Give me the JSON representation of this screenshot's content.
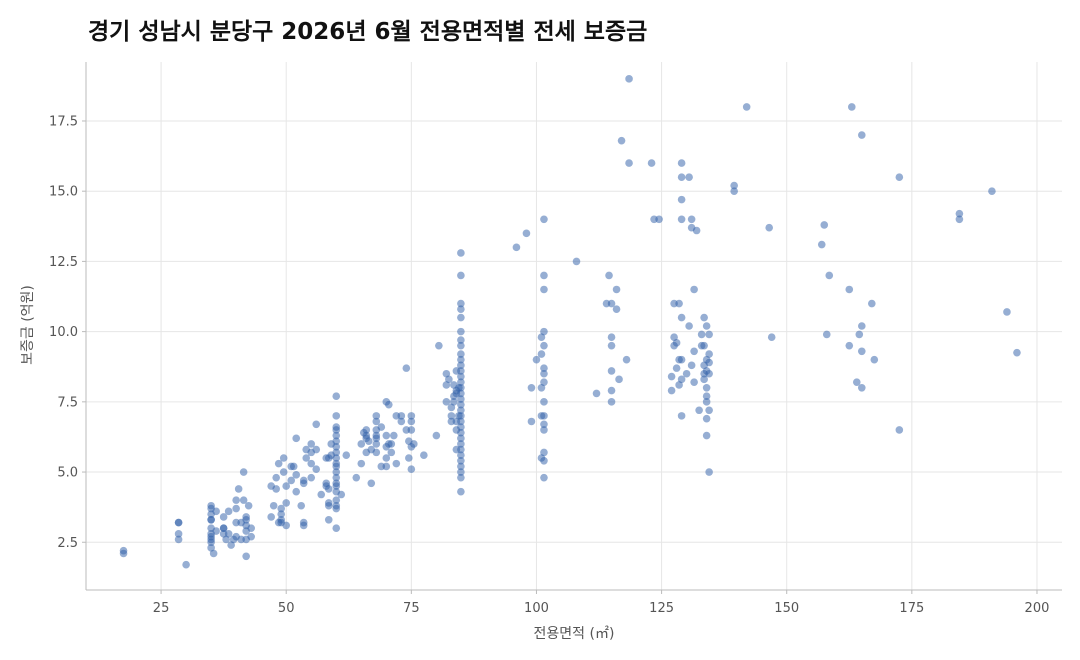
{
  "chart_data": {
    "type": "scatter",
    "title": "경기 성남시 분당구 2026년 6월 전용면적별 전세 보증금",
    "xlabel": "전용면적 (㎡)",
    "ylabel": "보증금 (억원)",
    "xlim": [
      10,
      205
    ],
    "ylim": [
      0.8,
      19.6
    ],
    "x_ticks": [
      25,
      50,
      75,
      100,
      125,
      150,
      175,
      200
    ],
    "x_tick_labels": [
      "25",
      "50",
      "75",
      "100",
      "125",
      "150",
      "175",
      "200"
    ],
    "y_ticks": [
      2.5,
      5.0,
      7.5,
      10.0,
      12.5,
      15.0,
      17.5
    ],
    "y_tick_labels": [
      "2.5",
      "5.0",
      "7.5",
      "10.0",
      "12.5",
      "15.0",
      "17.5"
    ],
    "grid": true,
    "point_color": "#2d5ea8",
    "point_opacity": 0.5,
    "points": [
      [
        17.5,
        2.2
      ],
      [
        17.5,
        2.1
      ],
      [
        30,
        1.7
      ],
      [
        28.5,
        3.2
      ],
      [
        28.5,
        3.2
      ],
      [
        28.5,
        2.8
      ],
      [
        28.5,
        2.6
      ],
      [
        35,
        3.8
      ],
      [
        35,
        3.7
      ],
      [
        35,
        3.5
      ],
      [
        35,
        3.3
      ],
      [
        35,
        3.3
      ],
      [
        35,
        3.0
      ],
      [
        35,
        2.8
      ],
      [
        35,
        2.7
      ],
      [
        35,
        2.6
      ],
      [
        35,
        2.5
      ],
      [
        35,
        2.3
      ],
      [
        35.5,
        2.1
      ],
      [
        36,
        3.6
      ],
      [
        36,
        2.9
      ],
      [
        37.5,
        3.4
      ],
      [
        37.5,
        3.0
      ],
      [
        37.5,
        3.0
      ],
      [
        37.5,
        2.8
      ],
      [
        38,
        2.6
      ],
      [
        38.5,
        3.6
      ],
      [
        38.5,
        2.8
      ],
      [
        39,
        2.4
      ],
      [
        39.5,
        2.6
      ],
      [
        40,
        4.0
      ],
      [
        40,
        3.7
      ],
      [
        40,
        3.2
      ],
      [
        40,
        2.7
      ],
      [
        40.5,
        4.4
      ],
      [
        41,
        3.2
      ],
      [
        41,
        2.6
      ],
      [
        41.5,
        4.0
      ],
      [
        41.5,
        5.0
      ],
      [
        42,
        3.4
      ],
      [
        42,
        3.3
      ],
      [
        42,
        3.1
      ],
      [
        42,
        2.9
      ],
      [
        42,
        2.6
      ],
      [
        42,
        2.0
      ],
      [
        42.5,
        3.8
      ],
      [
        43,
        2.7
      ],
      [
        43,
        3.0
      ],
      [
        47,
        4.5
      ],
      [
        47,
        3.4
      ],
      [
        47.5,
        3.8
      ],
      [
        48,
        4.8
      ],
      [
        48,
        4.4
      ],
      [
        48.5,
        5.3
      ],
      [
        48.5,
        3.2
      ],
      [
        49,
        3.7
      ],
      [
        49,
        3.5
      ],
      [
        49,
        3.3
      ],
      [
        49,
        3.2
      ],
      [
        49.5,
        5.0
      ],
      [
        49.5,
        5.5
      ],
      [
        50,
        4.5
      ],
      [
        50,
        3.9
      ],
      [
        50,
        3.1
      ],
      [
        51,
        4.7
      ],
      [
        51,
        5.2
      ],
      [
        51.5,
        5.2
      ],
      [
        52,
        4.3
      ],
      [
        52,
        4.9
      ],
      [
        52,
        6.2
      ],
      [
        53,
        3.8
      ],
      [
        53.5,
        4.6
      ],
      [
        53.5,
        4.7
      ],
      [
        53.5,
        3.2
      ],
      [
        53.5,
        3.1
      ],
      [
        54,
        5.8
      ],
      [
        54,
        5.5
      ],
      [
        55,
        5.7
      ],
      [
        55,
        6.0
      ],
      [
        55,
        5.3
      ],
      [
        55,
        4.8
      ],
      [
        56,
        6.7
      ],
      [
        56,
        5.1
      ],
      [
        56,
        5.8
      ],
      [
        57,
        4.2
      ],
      [
        58,
        5.5
      ],
      [
        58,
        4.6
      ],
      [
        58,
        4.5
      ],
      [
        58.5,
        5.5
      ],
      [
        58.5,
        4.4
      ],
      [
        58.5,
        3.9
      ],
      [
        58.5,
        3.8
      ],
      [
        58.5,
        3.3
      ],
      [
        59,
        6.0
      ],
      [
        59,
        5.6
      ],
      [
        60,
        7.7
      ],
      [
        60,
        7.0
      ],
      [
        60,
        6.6
      ],
      [
        60,
        6.5
      ],
      [
        60,
        6.3
      ],
      [
        60,
        6.1
      ],
      [
        60,
        5.9
      ],
      [
        60,
        5.7
      ],
      [
        60,
        5.5
      ],
      [
        60,
        5.3
      ],
      [
        60,
        5.2
      ],
      [
        60,
        5.0
      ],
      [
        60,
        4.8
      ],
      [
        60,
        4.6
      ],
      [
        60,
        4.5
      ],
      [
        60,
        4.3
      ],
      [
        60,
        4.0
      ],
      [
        60,
        3.8
      ],
      [
        60,
        3.7
      ],
      [
        60,
        3.0
      ],
      [
        61,
        4.2
      ],
      [
        62,
        5.6
      ],
      [
        64,
        4.8
      ],
      [
        65,
        5.3
      ],
      [
        65,
        6.0
      ],
      [
        65.5,
        6.4
      ],
      [
        66,
        6.3
      ],
      [
        66,
        6.2
      ],
      [
        66,
        6.5
      ],
      [
        66,
        5.7
      ],
      [
        66.5,
        6.1
      ],
      [
        67,
        5.8
      ],
      [
        67,
        4.6
      ],
      [
        68,
        7.0
      ],
      [
        68,
        6.8
      ],
      [
        68,
        6.5
      ],
      [
        68,
        6.3
      ],
      [
        68,
        6.2
      ],
      [
        68,
        6.0
      ],
      [
        68,
        5.7
      ],
      [
        69,
        6.6
      ],
      [
        69,
        5.2
      ],
      [
        70,
        7.5
      ],
      [
        70,
        6.3
      ],
      [
        70,
        5.9
      ],
      [
        70,
        5.5
      ],
      [
        70,
        5.2
      ],
      [
        70.5,
        7.4
      ],
      [
        70.5,
        6.0
      ],
      [
        71,
        6.0
      ],
      [
        71,
        5.7
      ],
      [
        71.5,
        6.3
      ],
      [
        72,
        7.0
      ],
      [
        72,
        5.3
      ],
      [
        73,
        7.0
      ],
      [
        73,
        6.8
      ],
      [
        74,
        6.5
      ],
      [
        74,
        8.7
      ],
      [
        74.5,
        6.1
      ],
      [
        74.5,
        5.5
      ],
      [
        75,
        7.0
      ],
      [
        75,
        6.8
      ],
      [
        75,
        6.5
      ],
      [
        75,
        5.9
      ],
      [
        75,
        5.1
      ],
      [
        75.5,
        6.0
      ],
      [
        77.5,
        5.6
      ],
      [
        80,
        6.3
      ],
      [
        80.5,
        9.5
      ],
      [
        82,
        8.5
      ],
      [
        82,
        8.1
      ],
      [
        82,
        7.5
      ],
      [
        82.5,
        8.3
      ],
      [
        83,
        7.3
      ],
      [
        83,
        7.0
      ],
      [
        83,
        6.8
      ],
      [
        83.5,
        8.1
      ],
      [
        83.5,
        7.7
      ],
      [
        83.5,
        7.5
      ],
      [
        84,
        8.6
      ],
      [
        84,
        7.9
      ],
      [
        84,
        7.8
      ],
      [
        84,
        6.8
      ],
      [
        84,
        6.5
      ],
      [
        84,
        5.8
      ],
      [
        84.5,
        8.0
      ],
      [
        84.5,
        7.0
      ],
      [
        84.9,
        12.8
      ],
      [
        84.9,
        12.0
      ],
      [
        84.9,
        11.0
      ],
      [
        84.9,
        10.8
      ],
      [
        84.9,
        10.5
      ],
      [
        84.9,
        10.0
      ],
      [
        84.9,
        9.7
      ],
      [
        84.9,
        9.5
      ],
      [
        84.9,
        9.2
      ],
      [
        84.9,
        9.0
      ],
      [
        84.9,
        8.8
      ],
      [
        84.9,
        8.6
      ],
      [
        84.9,
        8.4
      ],
      [
        84.9,
        8.2
      ],
      [
        84.9,
        8.0
      ],
      [
        84.9,
        7.8
      ],
      [
        84.9,
        7.6
      ],
      [
        84.9,
        7.4
      ],
      [
        84.9,
        7.2
      ],
      [
        84.9,
        7.0
      ],
      [
        84.9,
        6.8
      ],
      [
        84.9,
        6.6
      ],
      [
        84.9,
        6.4
      ],
      [
        84.9,
        6.2
      ],
      [
        84.9,
        6.0
      ],
      [
        84.9,
        5.8
      ],
      [
        84.9,
        5.6
      ],
      [
        84.9,
        5.4
      ],
      [
        84.9,
        5.2
      ],
      [
        84.9,
        5.0
      ],
      [
        84.9,
        4.8
      ],
      [
        84.9,
        4.3
      ],
      [
        96,
        13.0
      ],
      [
        98,
        13.5
      ],
      [
        99,
        8.0
      ],
      [
        99,
        6.8
      ],
      [
        100,
        9.0
      ],
      [
        101,
        9.8
      ],
      [
        101,
        9.2
      ],
      [
        101,
        8.0
      ],
      [
        101,
        7.0
      ],
      [
        101,
        5.5
      ],
      [
        101.5,
        14.0
      ],
      [
        101.5,
        12.0
      ],
      [
        101.5,
        11.5
      ],
      [
        101.5,
        10.0
      ],
      [
        101.5,
        9.5
      ],
      [
        101.5,
        8.7
      ],
      [
        101.5,
        8.5
      ],
      [
        101.5,
        8.2
      ],
      [
        101.5,
        7.5
      ],
      [
        101.5,
        7.0
      ],
      [
        101.5,
        6.7
      ],
      [
        101.5,
        6.5
      ],
      [
        101.5,
        5.7
      ],
      [
        101.5,
        5.4
      ],
      [
        101.5,
        4.8
      ],
      [
        108,
        12.5
      ],
      [
        112,
        7.8
      ],
      [
        114,
        11.0
      ],
      [
        114.5,
        12.0
      ],
      [
        115,
        11.0
      ],
      [
        115,
        9.8
      ],
      [
        115,
        8.6
      ],
      [
        115,
        7.9
      ],
      [
        115,
        7.5
      ],
      [
        115,
        9.5
      ],
      [
        116,
        11.5
      ],
      [
        116,
        10.8
      ],
      [
        116.5,
        8.3
      ],
      [
        117,
        16.8
      ],
      [
        118,
        9.0
      ],
      [
        118.5,
        19.0
      ],
      [
        118.5,
        16.0
      ],
      [
        123,
        16.0
      ],
      [
        123.5,
        14.0
      ],
      [
        124.5,
        14.0
      ],
      [
        127,
        8.4
      ],
      [
        127,
        7.9
      ],
      [
        127.5,
        11.0
      ],
      [
        127.5,
        9.8
      ],
      [
        127.5,
        9.5
      ],
      [
        128,
        8.7
      ],
      [
        128,
        9.6
      ],
      [
        128.5,
        11.0
      ],
      [
        128.5,
        8.1
      ],
      [
        128.5,
        9.0
      ],
      [
        129,
        16.0
      ],
      [
        129,
        15.5
      ],
      [
        129,
        14.7
      ],
      [
        129,
        14.0
      ],
      [
        129,
        10.5
      ],
      [
        129,
        9.0
      ],
      [
        129,
        8.3
      ],
      [
        129,
        7.0
      ],
      [
        130,
        8.5
      ],
      [
        130.5,
        15.5
      ],
      [
        130.5,
        10.2
      ],
      [
        131,
        14.0
      ],
      [
        131,
        13.7
      ],
      [
        131,
        8.8
      ],
      [
        131.5,
        11.5
      ],
      [
        131.5,
        9.3
      ],
      [
        131.5,
        8.2
      ],
      [
        132,
        13.6
      ],
      [
        132.5,
        7.2
      ],
      [
        133,
        9.9
      ],
      [
        133,
        9.5
      ],
      [
        133.5,
        10.5
      ],
      [
        133.5,
        9.5
      ],
      [
        133.5,
        8.8
      ],
      [
        133.5,
        8.5
      ],
      [
        133.5,
        8.3
      ],
      [
        134,
        10.2
      ],
      [
        134,
        9.0
      ],
      [
        134,
        8.6
      ],
      [
        134,
        8.0
      ],
      [
        134,
        7.7
      ],
      [
        134,
        7.5
      ],
      [
        134,
        6.9
      ],
      [
        134,
        6.3
      ],
      [
        134.5,
        9.9
      ],
      [
        134.5,
        9.2
      ],
      [
        134.5,
        8.9
      ],
      [
        134.5,
        8.5
      ],
      [
        134.5,
        7.2
      ],
      [
        134.5,
        5.0
      ],
      [
        139.5,
        15.2
      ],
      [
        139.5,
        15.0
      ],
      [
        142,
        18.0
      ],
      [
        146.5,
        13.7
      ],
      [
        147,
        9.8
      ],
      [
        157,
        13.1
      ],
      [
        157.5,
        13.8
      ],
      [
        158,
        9.9
      ],
      [
        158.5,
        12.0
      ],
      [
        162.5,
        11.5
      ],
      [
        162.5,
        9.5
      ],
      [
        163,
        18.0
      ],
      [
        164,
        8.2
      ],
      [
        164.5,
        9.9
      ],
      [
        165,
        17.0
      ],
      [
        165,
        10.2
      ],
      [
        165,
        9.3
      ],
      [
        165,
        8.0
      ],
      [
        167,
        11.0
      ],
      [
        167.5,
        9.0
      ],
      [
        172.5,
        15.5
      ],
      [
        172.5,
        6.5
      ],
      [
        184.5,
        14.2
      ],
      [
        184.5,
        14.0
      ],
      [
        191,
        15.0
      ],
      [
        194,
        10.7
      ],
      [
        196,
        9.25
      ]
    ]
  }
}
